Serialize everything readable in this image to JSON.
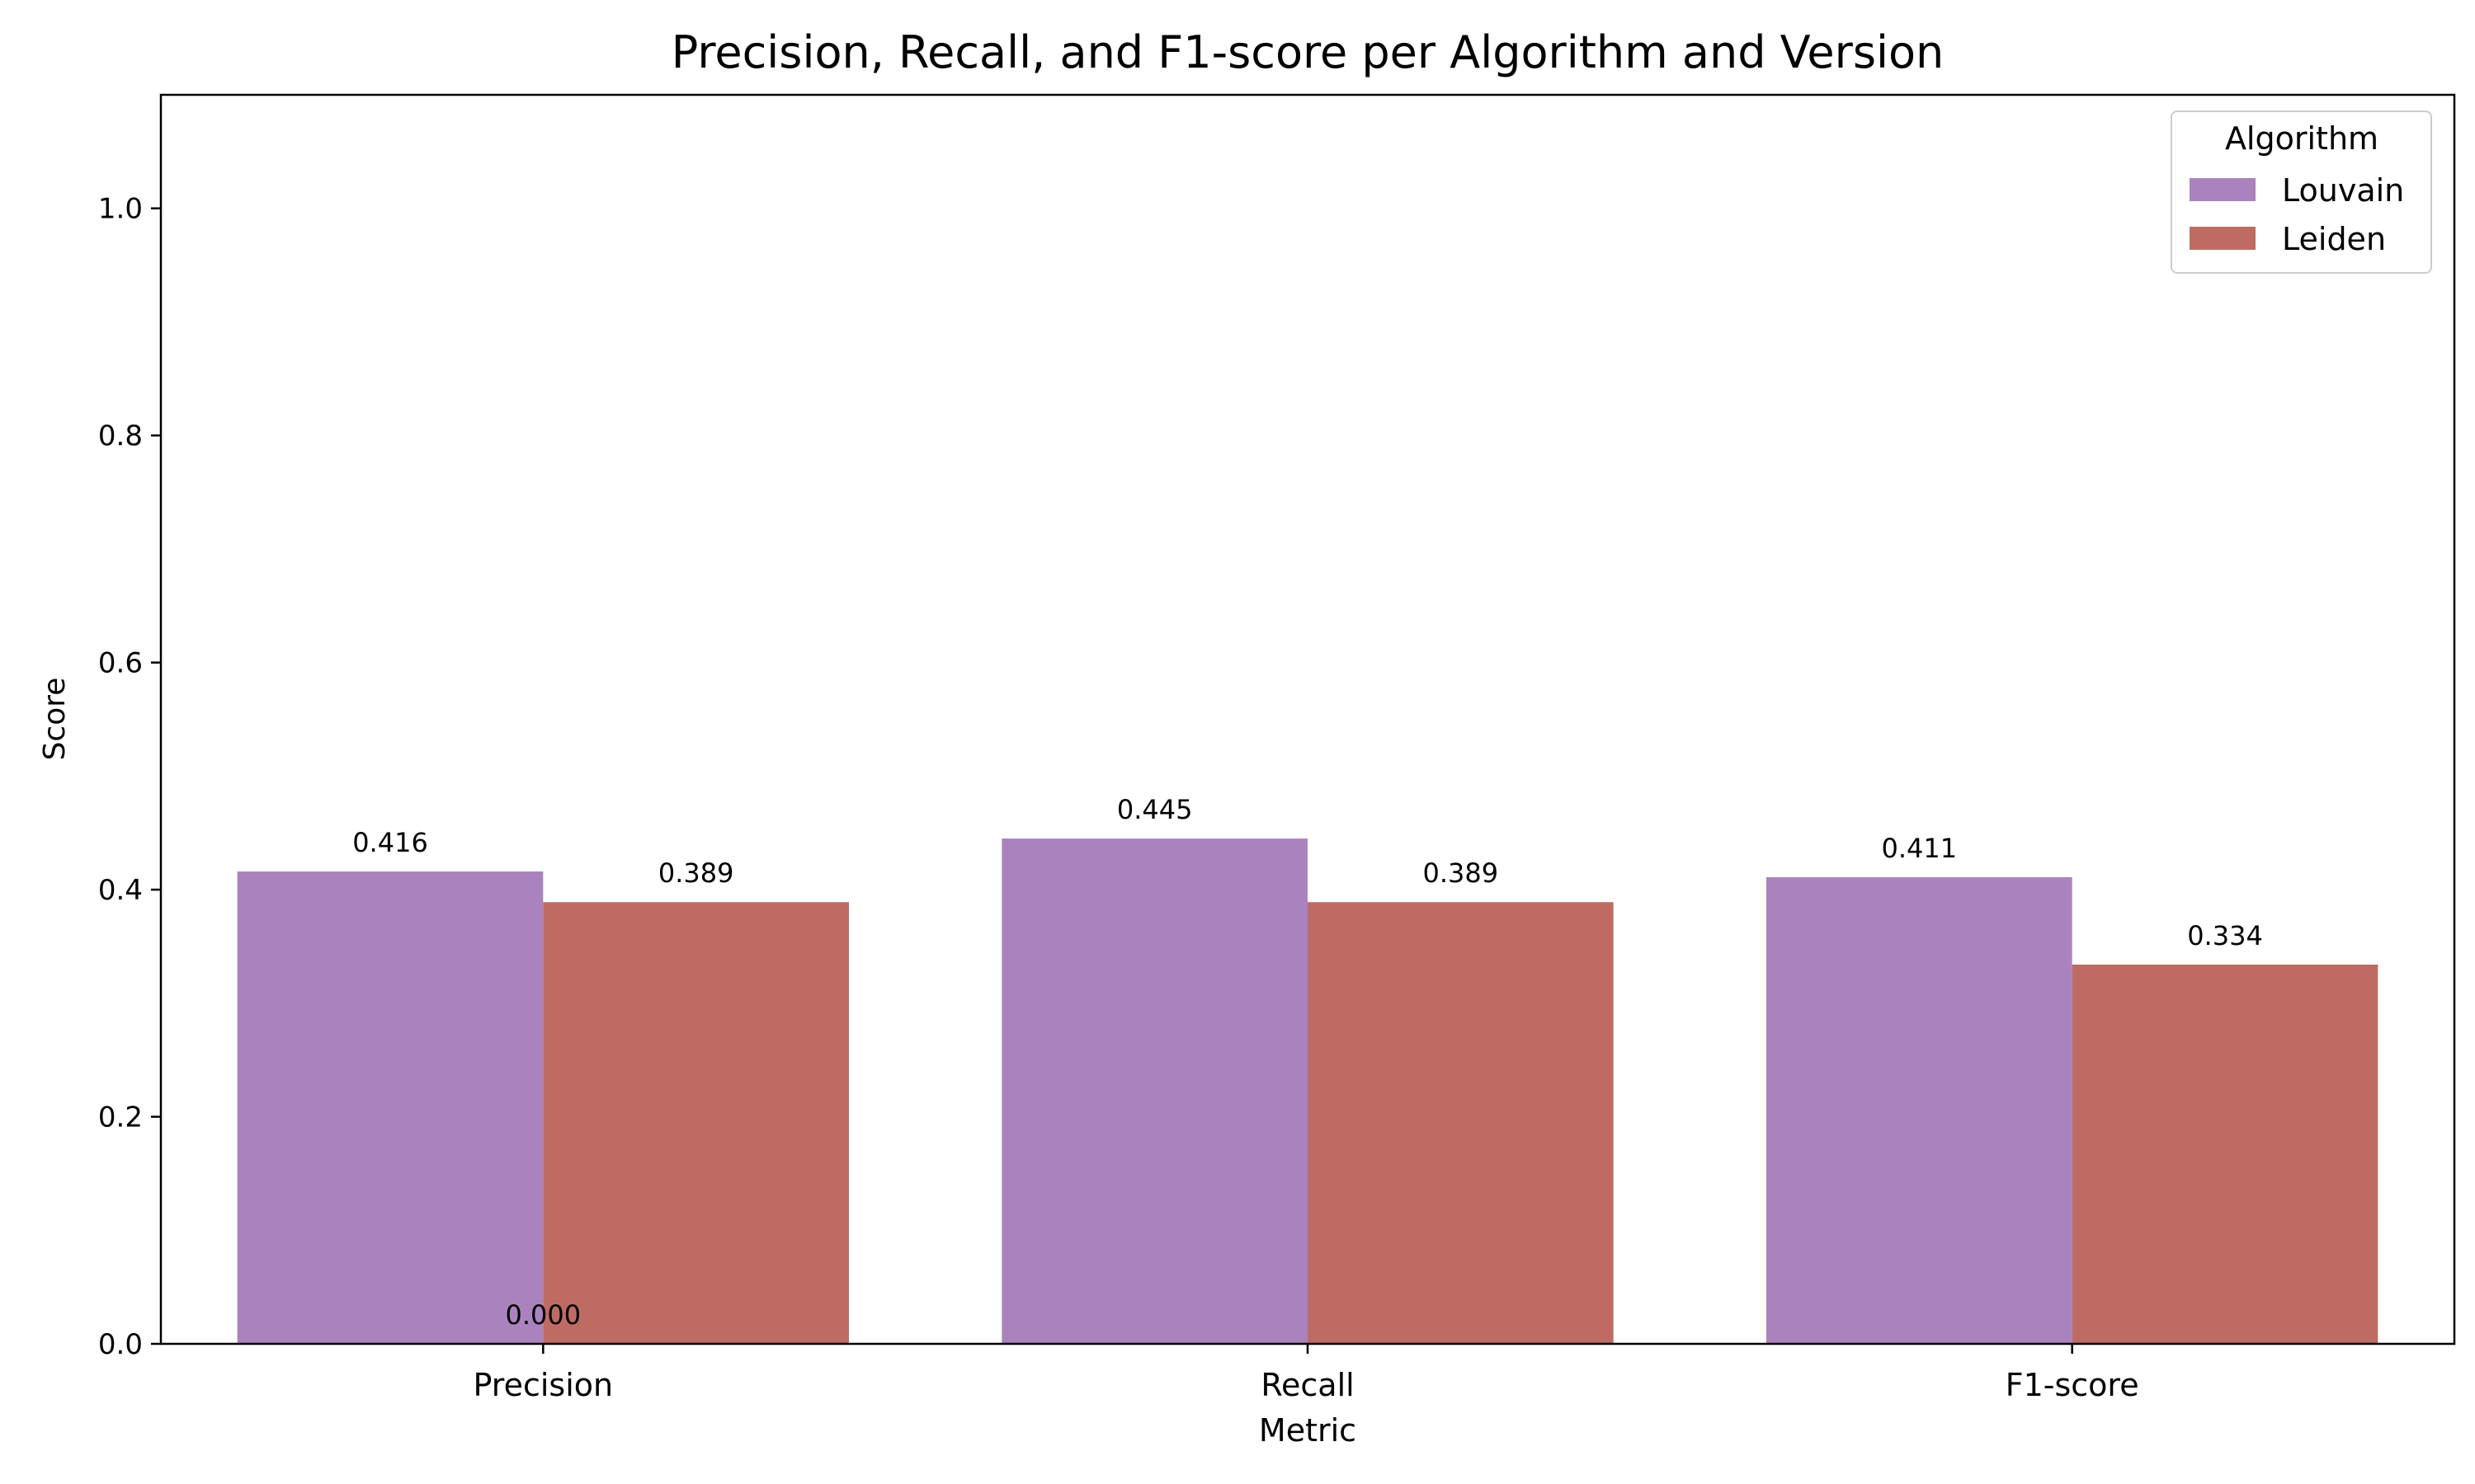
{
  "chart_data": {
    "type": "bar",
    "title": "Precision, Recall, and F1-score per Algorithm and Version",
    "xlabel": "Metric",
    "ylabel": "Score",
    "categories": [
      "Precision",
      "Recall",
      "F1-score"
    ],
    "ylim": [
      0,
      1.1
    ],
    "yticks": [
      0.0,
      0.2,
      0.4,
      0.6,
      0.8,
      1.0
    ],
    "ytick_labels": [
      "0.0",
      "0.2",
      "0.4",
      "0.6",
      "0.8",
      "1.0"
    ],
    "grid": false,
    "legend": {
      "title": "Algorithm",
      "placement": "top-right"
    },
    "series": [
      {
        "name": "Louvain",
        "color": "#aa83be",
        "values": [
          0.416,
          0.445,
          0.411
        ],
        "labels": [
          "0.416",
          "0.445",
          "0.411"
        ]
      },
      {
        "name": "Leiden",
        "color": "#be6c63",
        "values": [
          0.389,
          0.389,
          0.334
        ],
        "labels": [
          "0.389",
          "0.389",
          "0.334"
        ]
      }
    ],
    "annotations": [
      {
        "text": "0.000",
        "x": "Precision",
        "y": 0.0
      }
    ]
  }
}
